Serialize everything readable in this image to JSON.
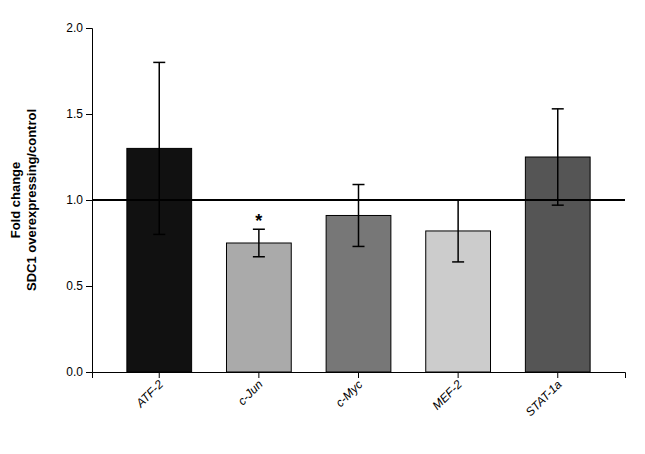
{
  "chart_data": {
    "type": "bar",
    "ylabel": [
      "Fold change",
      "SDC1 overexpressing/control"
    ],
    "categories": [
      "ATF-2",
      "c-Jun",
      "c-Myc",
      "MEF-2",
      "STAT-1a"
    ],
    "values": [
      1.3,
      0.75,
      0.91,
      0.82,
      1.25
    ],
    "errors": [
      0.5,
      0.08,
      0.18,
      0.18,
      0.28
    ],
    "colors": [
      "#111111",
      "#aaaaaa",
      "#777777",
      "#cccccc",
      "#555555"
    ],
    "reference_line": 1.0,
    "significance": [
      false,
      true,
      false,
      false,
      false
    ],
    "significance_label": "*",
    "ylim": [
      0.0,
      2.0
    ],
    "yticks": [
      {
        "value": 0,
        "label": "0.0"
      },
      0.5,
      {
        "value": 1,
        "label": "1.0"
      },
      1.5,
      {
        "value": 2,
        "label": "2.0"
      }
    ],
    "grid": false
  }
}
